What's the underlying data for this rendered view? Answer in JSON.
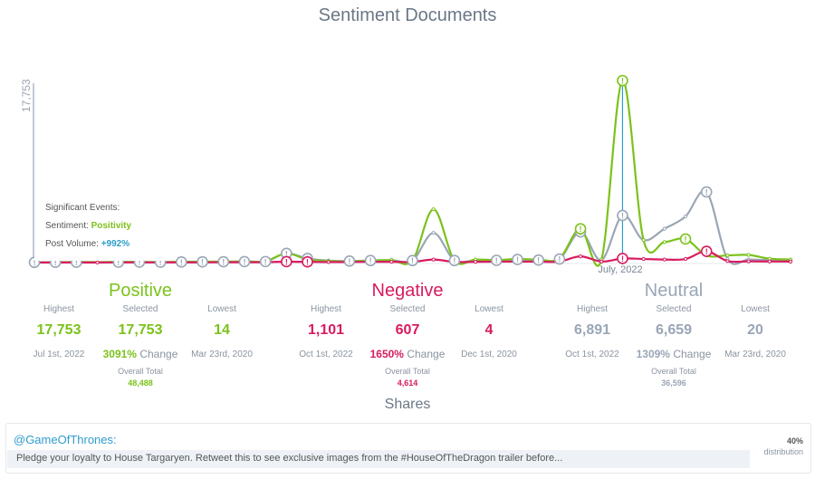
{
  "chart_data": {
    "type": "line",
    "title": "Sentiment Documents",
    "ylabel": "17,753",
    "ylim": [
      0,
      17753
    ],
    "x_annotation": "July, 2022",
    "series": [
      {
        "name": "Positive",
        "color": "#7cc21b",
        "values": [
          14,
          40,
          60,
          50,
          70,
          60,
          50,
          80,
          90,
          100,
          120,
          140,
          900,
          300,
          150,
          120,
          200,
          250,
          200,
          5200,
          200,
          300,
          250,
          350,
          300,
          400,
          3300,
          300,
          17753,
          2200,
          2000,
          2300,
          700,
          700,
          750,
          380,
          300
        ],
        "markers": [
          26,
          28,
          31
        ]
      },
      {
        "name": "Negative",
        "color": "#d81b60",
        "values": [
          4,
          10,
          15,
          12,
          18,
          20,
          16,
          22,
          25,
          30,
          35,
          40,
          90,
          70,
          50,
          60,
          70,
          80,
          60,
          300,
          60,
          80,
          90,
          100,
          90,
          100,
          607,
          100,
          400,
          350,
          300,
          350,
          1101,
          150,
          120,
          110,
          100
        ],
        "markers": [
          12,
          13,
          28,
          32
        ]
      },
      {
        "name": "Neutral",
        "color": "#9aa6b6",
        "values": [
          20,
          30,
          40,
          35,
          45,
          50,
          40,
          60,
          70,
          80,
          90,
          100,
          900,
          400,
          200,
          150,
          200,
          250,
          200,
          2900,
          200,
          250,
          220,
          300,
          250,
          350,
          3000,
          250,
          4600,
          2200,
          3300,
          4500,
          6891,
          350,
          300,
          250,
          200
        ],
        "markers": [
          0,
          1,
          2,
          4,
          5,
          6,
          7,
          8,
          9,
          10,
          11,
          12,
          13,
          15,
          16,
          18,
          20,
          22,
          23,
          24,
          25,
          26,
          28,
          32
        ]
      }
    ]
  },
  "tooltip": {
    "heading": "Significant Events:",
    "sentiment_label": "Sentiment:",
    "sentiment_value": "Positivity",
    "volume_label": "Post Volume:",
    "volume_value": "+992%"
  },
  "stats": [
    {
      "name": "Positive",
      "color": "#7cc21b",
      "highest_label": "Highest",
      "highest": "17,753",
      "highest_date": "Jul 1st, 2022",
      "selected_label": "Selected",
      "selected": "17,753",
      "lowest_label": "Lowest",
      "lowest": "14",
      "lowest_date": "Mar 23rd, 2020",
      "change_pct": "3091%",
      "change_label": "Change",
      "overall_label": "Overall Total",
      "overall_total": "48,488"
    },
    {
      "name": "Negative",
      "color": "#d81b60",
      "highest_label": "Highest",
      "highest": "1,101",
      "highest_date": "Oct 1st, 2022",
      "selected_label": "Selected",
      "selected": "607",
      "lowest_label": "Lowest",
      "lowest": "4",
      "lowest_date": "Dec 1st, 2020",
      "change_pct": "1650%",
      "change_label": "Change",
      "overall_label": "Overall Total",
      "overall_total": "4,614"
    },
    {
      "name": "Neutral",
      "color": "#9aa6b6",
      "highest_label": "Highest",
      "highest": "6,891",
      "highest_date": "Oct 1st, 2022",
      "selected_label": "Selected",
      "selected": "6,659",
      "lowest_label": "Lowest",
      "lowest": "20",
      "lowest_date": "Mar 23rd, 2020",
      "change_pct": "1309%",
      "change_label": "Change",
      "overall_label": "Overall Total",
      "overall_total": "36,596"
    }
  ],
  "shares": {
    "title": "Shares",
    "handle": "@GameOfThrones:",
    "text": "Pledge your loyalty to House Targaryen. Retweet this to see exclusive images from the #HouseOfTheDragon trailer before...",
    "percent": "40%",
    "distribution_label": "distribution"
  }
}
